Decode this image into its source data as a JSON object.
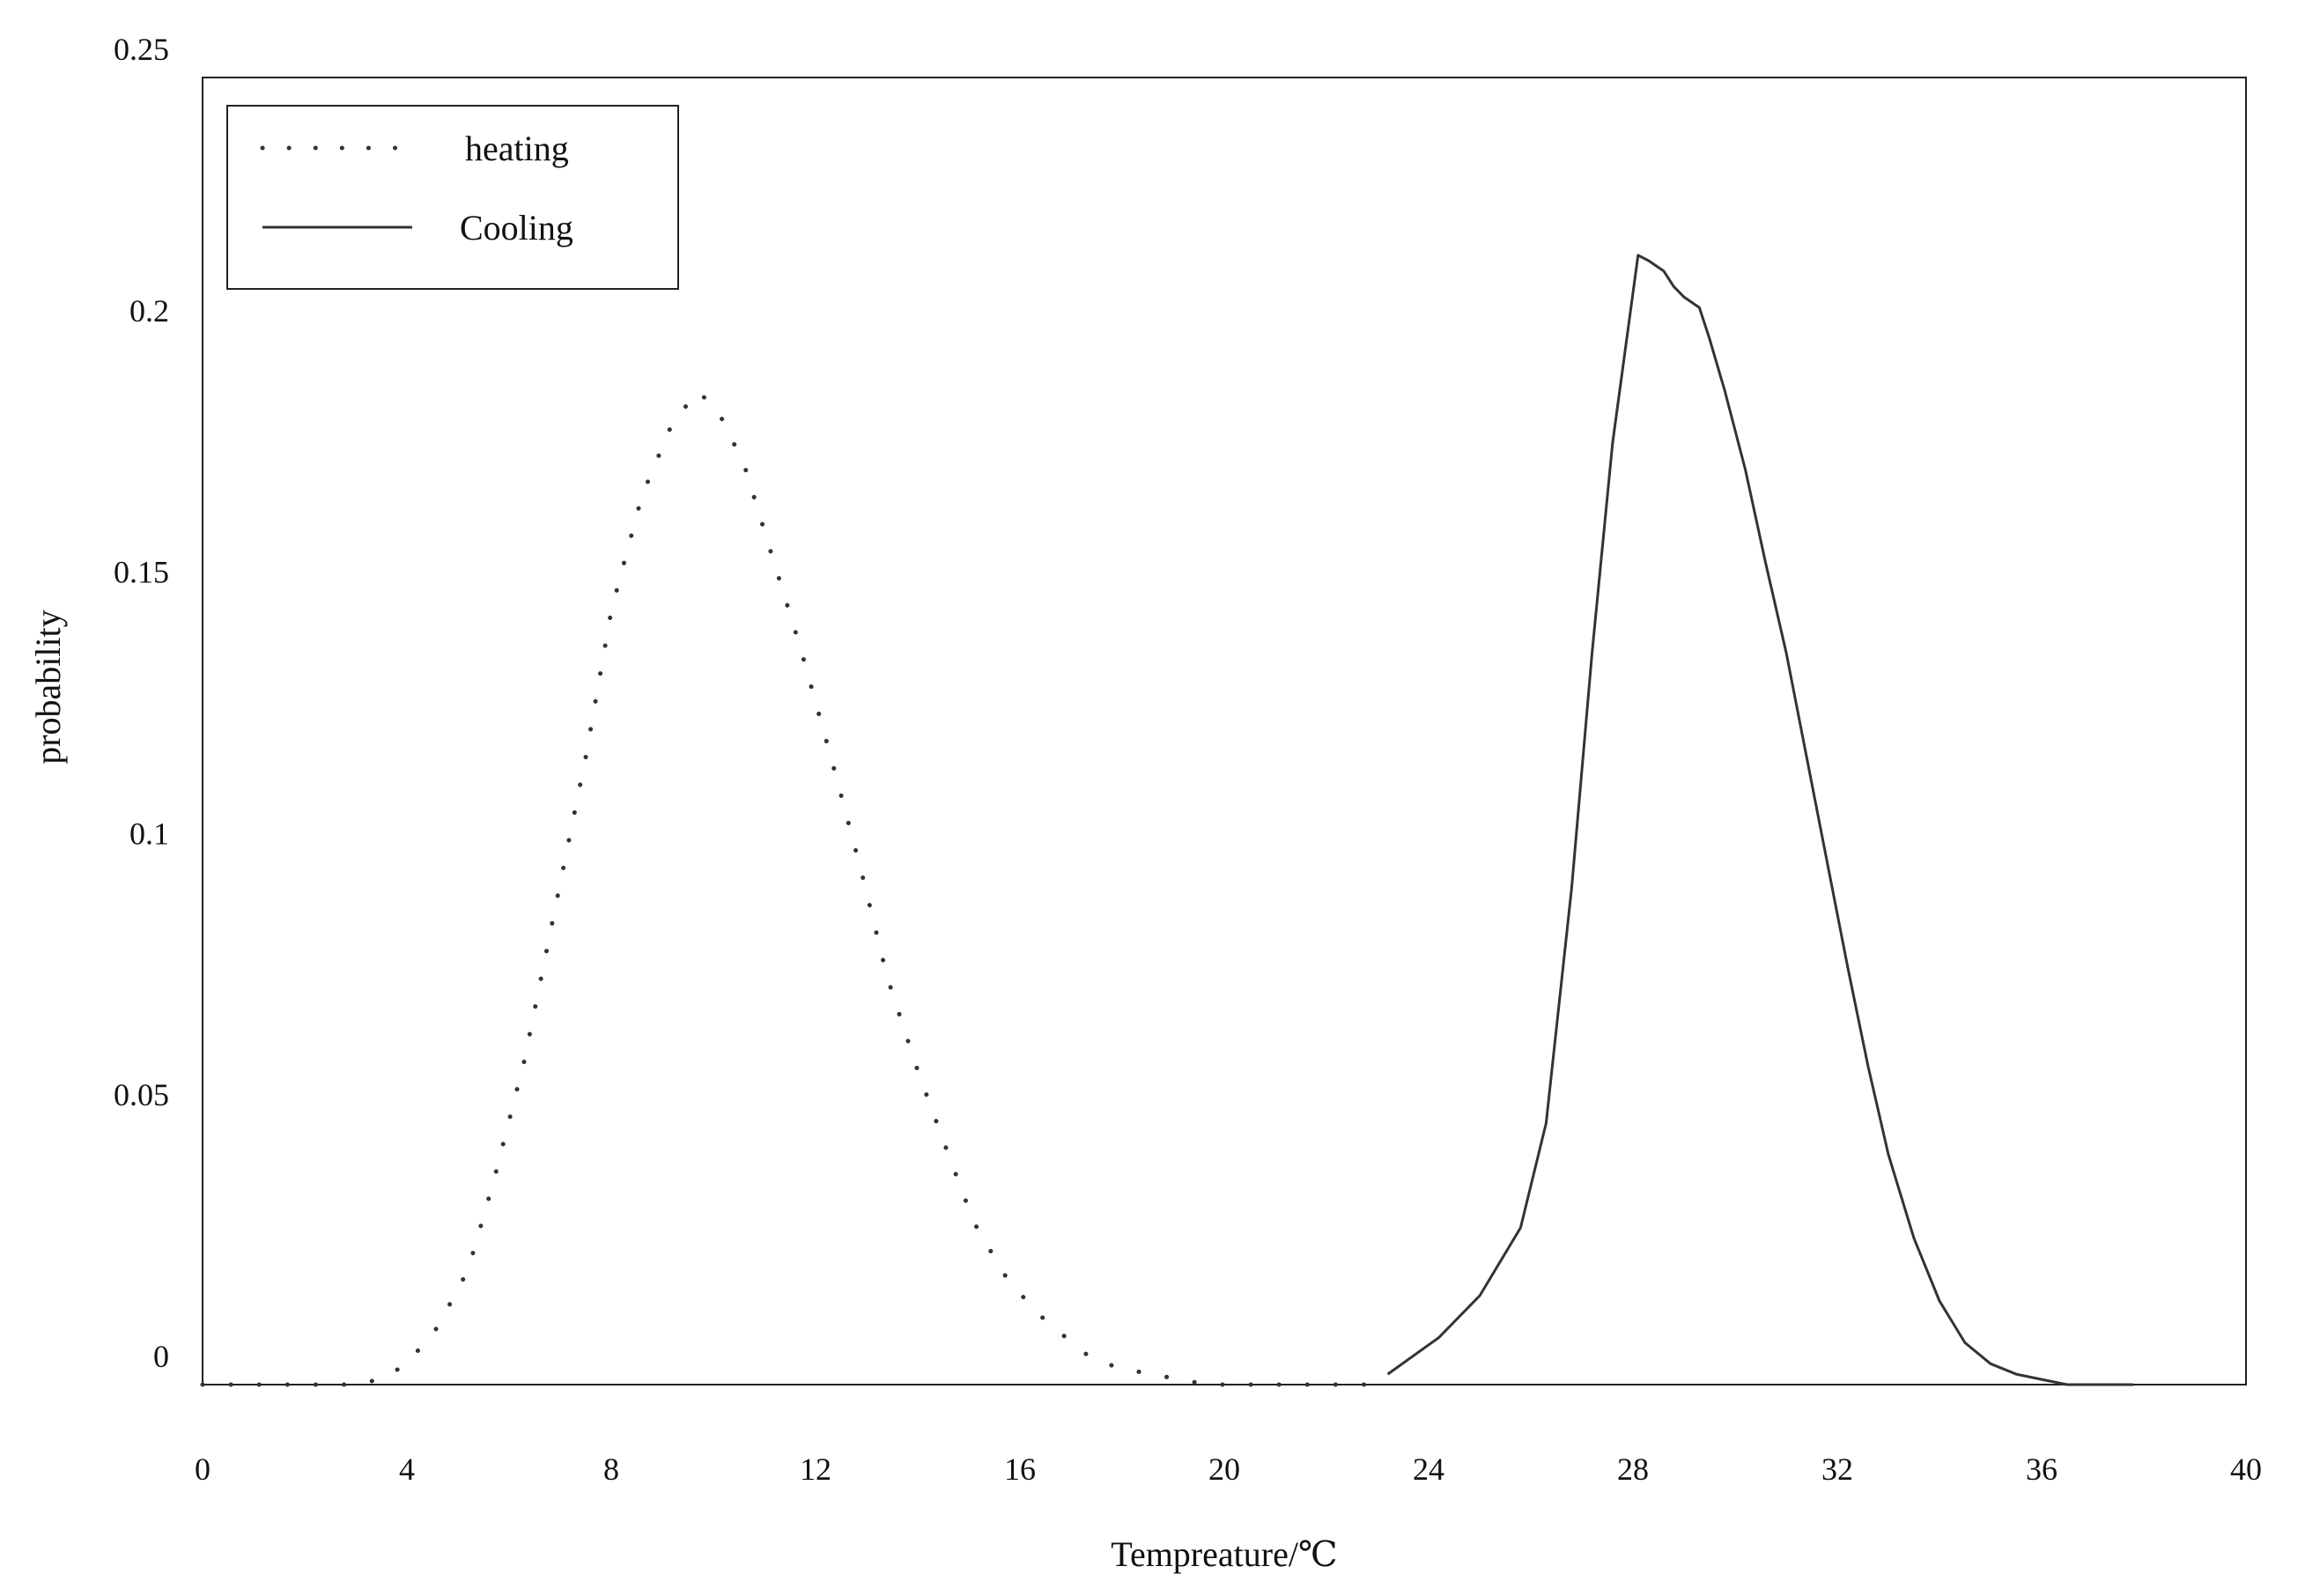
{
  "chart_data": {
    "type": "line",
    "xlabel": "Tempreature/℃",
    "ylabel": "probability",
    "xlim": [
      0,
      40
    ],
    "ylim": [
      0,
      0.25
    ],
    "x_tick_labels": [
      "0",
      "4",
      "8",
      "12",
      "16",
      "20",
      "24",
      "28",
      "32",
      "36",
      "40"
    ],
    "y_tick_labels": [
      "0",
      "0.05",
      "0.1",
      "0.15",
      "0.2",
      "0.25"
    ],
    "grid": false,
    "legend_position": "top-left",
    "series": [
      {
        "name": "heating",
        "style": "dotted",
        "color": "#333333",
        "x": [
          0,
          0.6,
          1.2,
          1.8,
          2.3,
          2.9,
          3.5,
          4.0,
          4.6,
          5.2,
          5.7,
          6.3,
          6.9,
          7.5,
          8.0,
          8.6,
          9.2,
          9.7,
          10.1,
          10.6,
          11.1,
          11.7,
          12.3,
          12.9,
          13.4,
          14.0,
          14.6,
          15.1,
          15.7,
          16.3,
          16.9,
          17.4,
          18.0,
          18.6,
          19.1,
          19.7,
          20.3,
          20.9,
          21.4,
          22.0,
          22.6,
          23.2
        ],
        "y": [
          0,
          0,
          0,
          0,
          0,
          0,
          0.001,
          0.004,
          0.011,
          0.022,
          0.039,
          0.062,
          0.091,
          0.12,
          0.148,
          0.17,
          0.184,
          0.19,
          0.186,
          0.176,
          0.16,
          0.141,
          0.12,
          0.098,
          0.078,
          0.06,
          0.044,
          0.031,
          0.021,
          0.014,
          0.009,
          0.005,
          0.003,
          0.002,
          0.001,
          0,
          0,
          0,
          0,
          0,
          0,
          0
        ]
      },
      {
        "name": "Cooling",
        "style": "solid",
        "color": "#333333",
        "x": [
          23.2,
          24.2,
          25.0,
          25.8,
          26.3,
          26.8,
          27.2,
          27.6,
          28.1,
          28.3,
          28.6,
          28.8,
          29.0,
          29.3,
          29.5,
          29.8,
          30.2,
          30.6,
          31.0,
          31.4,
          31.8,
          32.2,
          32.6,
          33.0,
          33.5,
          34.0,
          34.5,
          35.0,
          35.5,
          36.0,
          36.5,
          37.0,
          37.8
        ],
        "y": [
          0.002,
          0.009,
          0.017,
          0.03,
          0.05,
          0.095,
          0.14,
          0.18,
          0.216,
          0.215,
          0.213,
          0.21,
          0.208,
          0.206,
          0.2,
          0.19,
          0.175,
          0.157,
          0.14,
          0.12,
          0.1,
          0.08,
          0.061,
          0.044,
          0.028,
          0.016,
          0.008,
          0.004,
          0.002,
          0.001,
          0,
          0,
          0
        ]
      }
    ]
  }
}
